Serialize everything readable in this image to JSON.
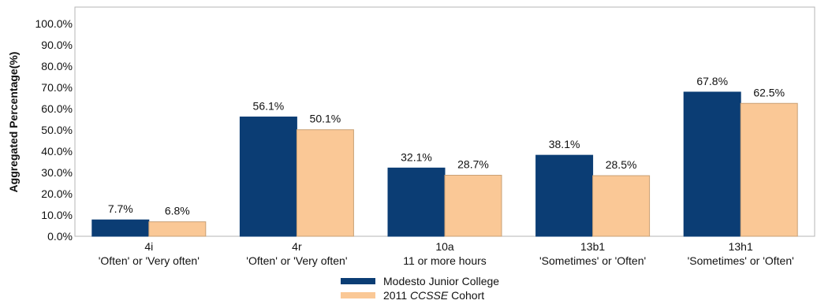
{
  "chart_data": {
    "type": "bar",
    "ylabel": "Aggregated Percentage(%)",
    "ylim": [
      0,
      100
    ],
    "yticks": [
      "0.0%",
      "10.0%",
      "20.0%",
      "30.0%",
      "40.0%",
      "50.0%",
      "60.0%",
      "70.0%",
      "80.0%",
      "90.0%",
      "100.0%"
    ],
    "categories": [
      {
        "code": "4i",
        "desc": "'Often' or 'Very often'"
      },
      {
        "code": "4r",
        "desc": "'Often' or 'Very often'"
      },
      {
        "code": "10a",
        "desc": "11 or more hours"
      },
      {
        "code": "13b1",
        "desc": "'Sometimes' or 'Often'"
      },
      {
        "code": "13h1",
        "desc": "'Sometimes' or 'Often'"
      }
    ],
    "series": [
      {
        "name": "Modesto Junior College",
        "color": "#0b3d74",
        "values": [
          7.7,
          56.1,
          32.1,
          38.1,
          67.8
        ],
        "labels": [
          "7.7%",
          "56.1%",
          "32.1%",
          "38.1%",
          "67.8%"
        ]
      },
      {
        "name": "2011 CCSSE Cohort",
        "color": "#fac896",
        "values": [
          6.8,
          50.1,
          28.7,
          28.5,
          62.5
        ],
        "labels": [
          "6.8%",
          "50.1%",
          "28.7%",
          "28.5%",
          "62.5%"
        ]
      }
    ],
    "grid": false,
    "legend_position": "bottom"
  },
  "legend": {
    "item1": "Modesto Junior College",
    "item2_prefix": "2011 ",
    "item2_italic": "CCSSE",
    "item2_suffix": " Cohort"
  }
}
